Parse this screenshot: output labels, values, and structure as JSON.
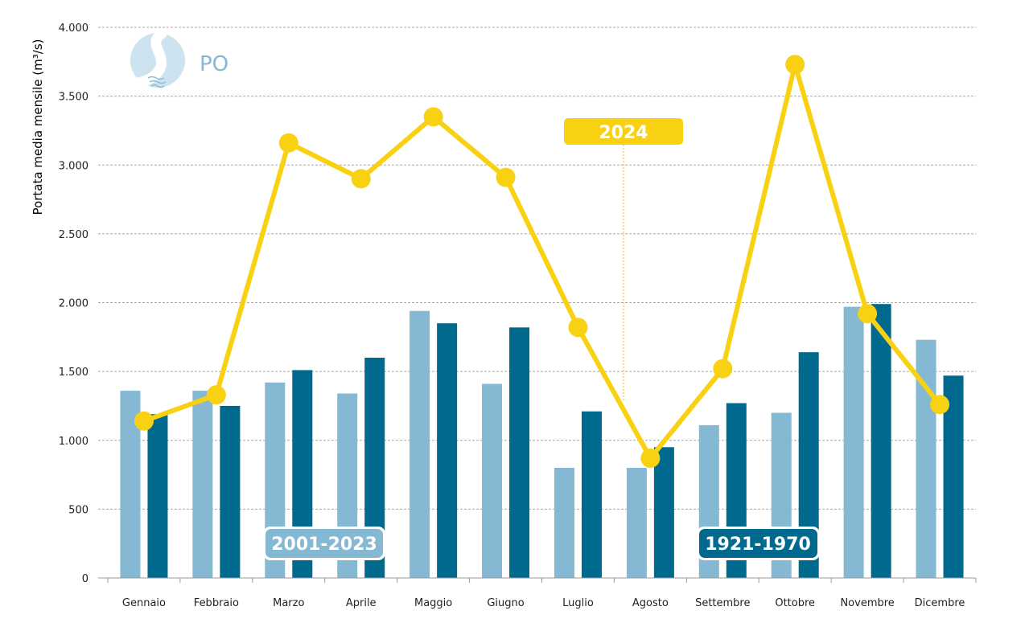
{
  "chart_data": {
    "type": "bar",
    "ylabel": "Portata media mensile (m³/s)",
    "ylim": [
      0,
      4000
    ],
    "yticks": [
      0,
      500,
      1000,
      1500,
      2000,
      2500,
      3000,
      3500,
      4000
    ],
    "ytick_labels": [
      "0",
      "500",
      "1.000",
      "1.500",
      "2.000",
      "2.500",
      "3.000",
      "3.500",
      "4.000"
    ],
    "grid": true,
    "categories": [
      "Gennaio",
      "Febbraio",
      "Marzo",
      "Aprile",
      "Maggio",
      "Giugno",
      "Luglio",
      "Agosto",
      "Settembre",
      "Ottobre",
      "Novembre",
      "Dicembre"
    ],
    "series": [
      {
        "name": "2001-2023",
        "type": "bar",
        "color": "#84b8d3",
        "values": [
          1360,
          1360,
          1420,
          1340,
          1940,
          1410,
          800,
          800,
          1110,
          1200,
          1970,
          1730
        ]
      },
      {
        "name": "1921-1970",
        "type": "bar",
        "color": "#006a8e",
        "values": [
          1190,
          1250,
          1510,
          1600,
          1850,
          1820,
          1210,
          950,
          1270,
          1640,
          1990,
          1470
        ]
      },
      {
        "name": "2024",
        "type": "line",
        "color": "#f7d112",
        "values": [
          1140,
          1330,
          3160,
          2900,
          3350,
          2910,
          1820,
          870,
          1520,
          3730,
          1920,
          1260
        ]
      }
    ],
    "annotations": [
      {
        "text": "2001-2023",
        "series": 0
      },
      {
        "text": "1921-1970",
        "series": 1
      },
      {
        "text": "2024",
        "series": 2
      }
    ]
  },
  "logo": {
    "label": "PO",
    "icon": "river-icon"
  }
}
